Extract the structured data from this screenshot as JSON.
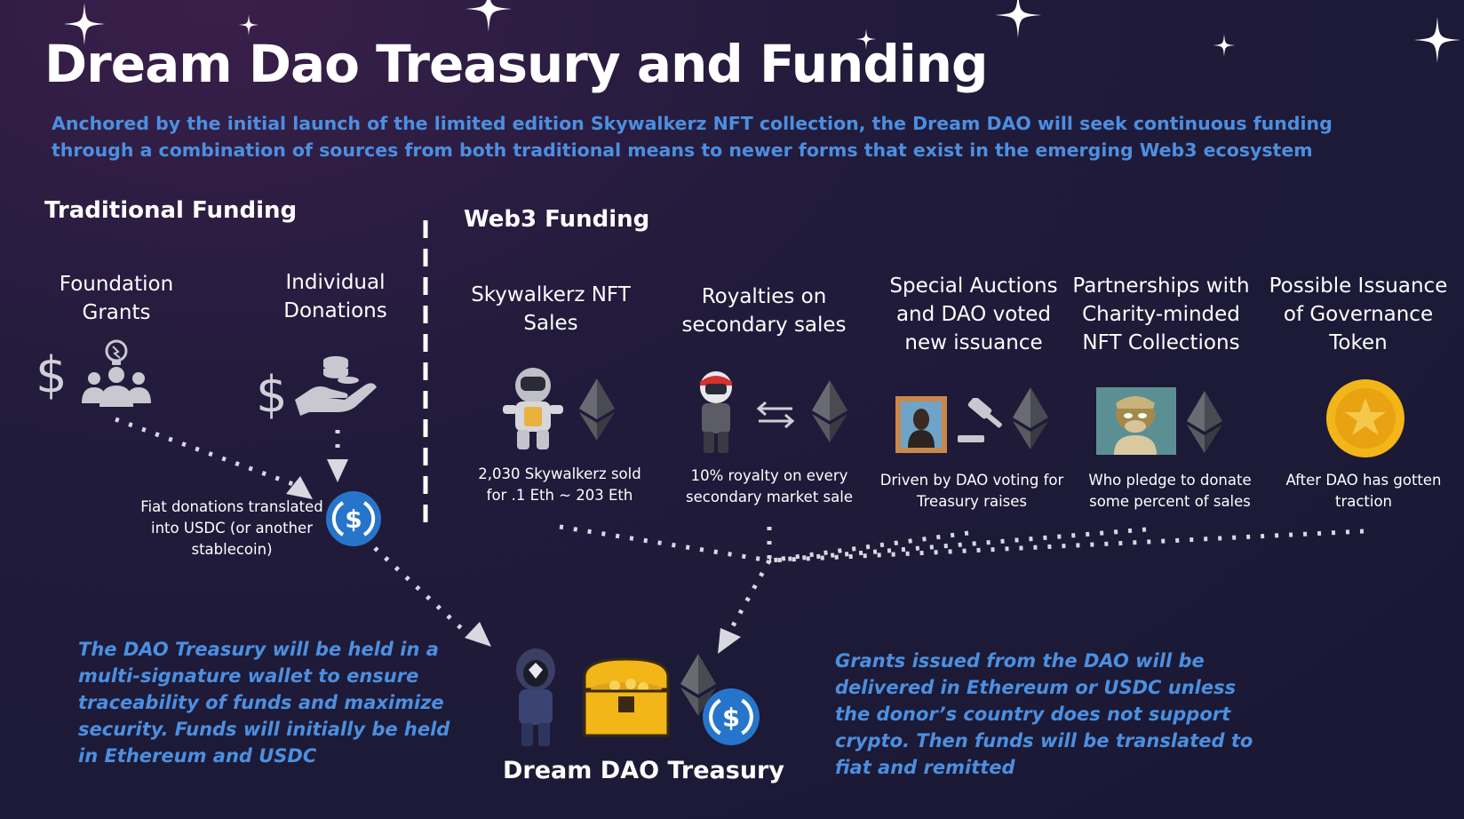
{
  "title": "Dream Dao Treasury and Funding",
  "subtitle": "Anchored by the initial launch of the limited edition Skywalkerz NFT collection, the Dream DAO will seek continuous funding through a combination of sources from both traditional means to newer forms that exist in the emerging Web3 ecosystem",
  "traditional": {
    "heading": "Traditional Funding",
    "foundation": "Foundation Grants",
    "individual": "Individual Donations",
    "fiat_note": "Fiat donations translated into USDC (or another stablecoin)",
    "dollar_sign": "$"
  },
  "web3": {
    "heading": "Web3 Funding",
    "items": [
      {
        "title": "Skywalkerz NFT Sales",
        "desc": "2,030 Skywalkerz sold for .1 Eth ~ 203 Eth"
      },
      {
        "title": "Royalties on secondary sales",
        "desc": "10% royalty on every secondary market sale"
      },
      {
        "title": "Special Auctions and DAO voted new issuance",
        "desc": "Driven by DAO voting for Treasury raises"
      },
      {
        "title": "Partnerships with Charity-minded NFT Collections",
        "desc": "Who pledge to donate some percent of sales"
      },
      {
        "title": "Possible Issuance of Governance Token",
        "desc": "After DAO has gotten traction"
      }
    ]
  },
  "treasury": {
    "label": "Dream DAO Treasury"
  },
  "notes": {
    "left": "The DAO Treasury will be held in a multi-signature wallet to ensure traceability of funds and maximize security.  Funds will initially be held in Ethereum and USDC",
    "right": "Grants issued from the DAO will be delivered in Ethereum or USDC unless the donor’s country does not support crypto.  Then funds will be translated to fiat and remitted"
  },
  "colors": {
    "accent_blue": "#4c8fe0",
    "usdc_blue": "#2775ca",
    "gold": "#f2b619"
  },
  "icons": [
    "star-icon",
    "dollar-icon",
    "people-lightbulb-icon",
    "hand-coins-icon",
    "usdc-icon",
    "ethereum-icon",
    "astronaut-icon",
    "swap-arrows-icon",
    "portrait-icon",
    "gavel-icon",
    "ape-icon",
    "gold-coin-icon",
    "treasure-chest-icon",
    "hooded-figure-icon"
  ]
}
